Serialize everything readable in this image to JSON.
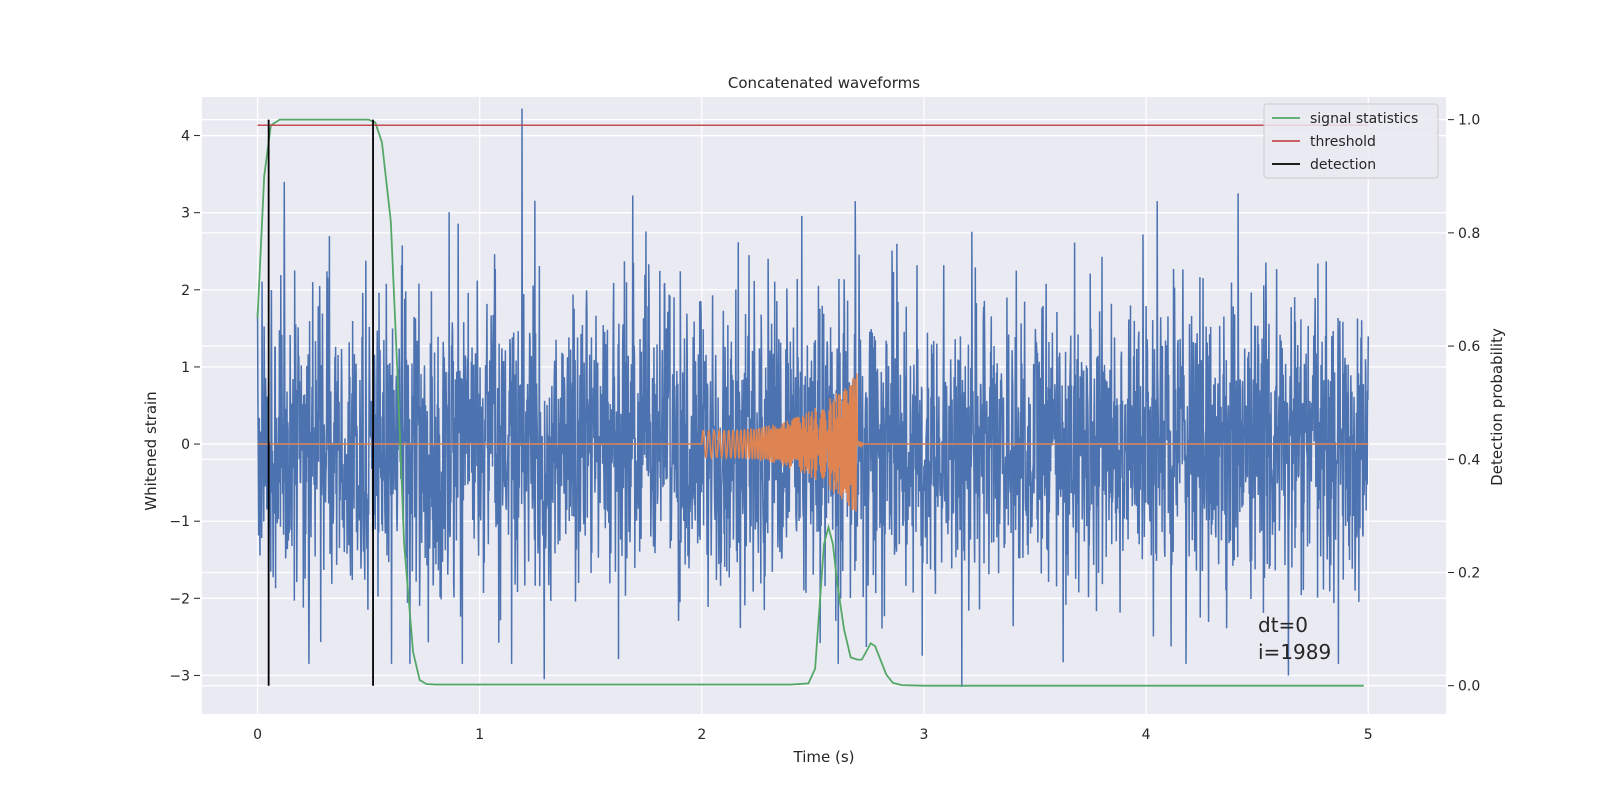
{
  "chart_data": {
    "type": "line",
    "title": "Concatenated waveforms",
    "xlabel": "Time (s)",
    "ylabel": "Whitened strain",
    "y2label": "Detection probability",
    "xlim": [
      -0.25,
      5.35
    ],
    "ylim": [
      -3.5,
      4.5
    ],
    "y2lim": [
      -0.05,
      1.04
    ],
    "xticks": [
      0,
      1,
      2,
      3,
      4,
      5
    ],
    "xtick_labels": [
      "0",
      "1",
      "2",
      "3",
      "4",
      "5"
    ],
    "yticks": [
      4,
      3,
      2,
      1,
      0,
      -1,
      -2,
      -3
    ],
    "ytick_labels": [
      "4",
      "3",
      "2",
      "1",
      "0",
      "−1",
      "−2",
      "−3"
    ],
    "y2ticks": [
      1.0,
      0.8,
      0.6,
      0.4,
      0.2,
      0.0
    ],
    "y2tick_labels": [
      "1.0",
      "0.8",
      "0.6",
      "0.4",
      "0.2",
      "0.0"
    ],
    "grid": true,
    "legend_position": "top-right",
    "legend": [
      {
        "label": "signal statistics",
        "color": "#55a868"
      },
      {
        "label": "threshold",
        "color": "#c44e52"
      },
      {
        "label": "detection",
        "color": "#000000"
      }
    ],
    "series": [
      {
        "kind": "noise",
        "axis": "left",
        "color": "#4c72b0",
        "x_range": [
          0,
          5
        ],
        "y_range": [
          -3.15,
          4.35
        ],
        "spikes": [
          [
            0.12,
            3.4
          ],
          [
            1.19,
            4.35
          ],
          [
            1.29,
            -3.05
          ],
          [
            1.64,
            -1.45
          ],
          [
            2.69,
            3.15
          ],
          [
            3.17,
            -3.15
          ],
          [
            4.05,
            3.15
          ],
          [
            4.64,
            -3.0
          ]
        ]
      },
      {
        "kind": "chirp",
        "axis": "left",
        "color": "#dd8452",
        "x_range": [
          2.0,
          2.7
        ],
        "amplitude_start": 0.18,
        "amplitude_peak": 0.93,
        "amplitude_min": -0.9,
        "baseline": 0
      },
      {
        "name": "signal statistics",
        "axis": "right",
        "color": "#55a868",
        "x": [
          0,
          0.03,
          0.06,
          0.08,
          0.1,
          0.15,
          0.2,
          0.3,
          0.4,
          0.5,
          0.53,
          0.56,
          0.6,
          0.63,
          0.66,
          0.7,
          0.73,
          0.76,
          0.8,
          1.0,
          2.0,
          2.4,
          2.48,
          2.51,
          2.53,
          2.55,
          2.57,
          2.59,
          2.61,
          2.64,
          2.67,
          2.7,
          2.72,
          2.74,
          2.76,
          2.78,
          2.8,
          2.83,
          2.86,
          2.9,
          3.0,
          4.0,
          4.98
        ],
        "y": [
          0.65,
          0.9,
          0.99,
          0.995,
          1.0,
          1.0,
          1.0,
          1.0,
          1.0,
          1.0,
          0.995,
          0.96,
          0.82,
          0.55,
          0.25,
          0.06,
          0.01,
          0.003,
          0.002,
          0.002,
          0.002,
          0.002,
          0.004,
          0.03,
          0.14,
          0.25,
          0.28,
          0.25,
          0.18,
          0.1,
          0.05,
          0.046,
          0.046,
          0.06,
          0.075,
          0.07,
          0.05,
          0.02,
          0.005,
          0.001,
          0.0,
          0.0,
          0.0
        ]
      },
      {
        "name": "threshold",
        "axis": "right",
        "color": "#c44e52",
        "x": [
          0,
          5
        ],
        "y": [
          0.99,
          0.99
        ]
      },
      {
        "name": "detection",
        "axis": "right",
        "color": "#000000",
        "vlines": [
          0.05,
          0.52
        ],
        "y_range": [
          0.0,
          1.0
        ]
      }
    ],
    "annotations": [
      "dt=0",
      "i=1989"
    ]
  }
}
